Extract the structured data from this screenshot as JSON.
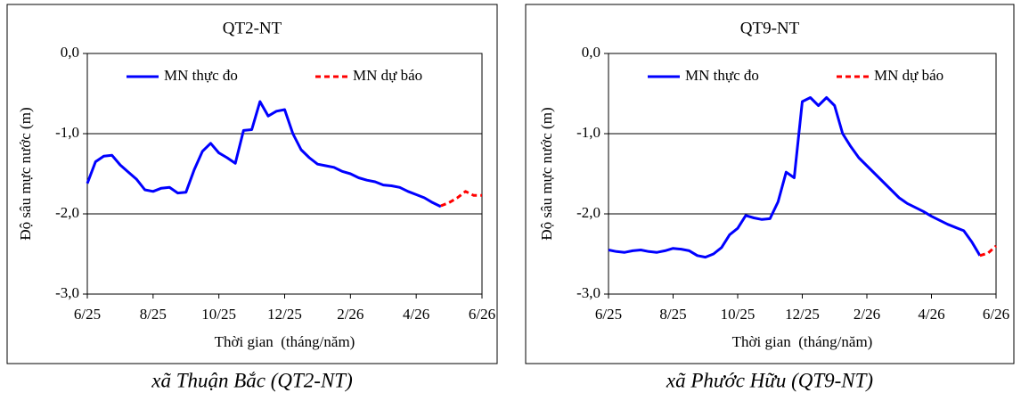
{
  "chart_data": [
    {
      "type": "line",
      "title": "QT2-NT",
      "caption": "xã Thuận Bắc (QT2-NT)",
      "x_label": "Thời gian  (tháng/năm)",
      "y_label": "Độ sâu mực nước (m)",
      "categories": [
        "6/25",
        null,
        null,
        null,
        null,
        null,
        null,
        null,
        "8/25",
        null,
        null,
        null,
        null,
        null,
        null,
        null,
        "10/25",
        null,
        null,
        null,
        null,
        null,
        null,
        null,
        "12/25",
        null,
        null,
        null,
        null,
        null,
        null,
        null,
        "2/26",
        null,
        null,
        null,
        null,
        null,
        null,
        null,
        "4/26",
        null,
        null,
        null,
        null,
        null,
        null,
        null,
        "6/26"
      ],
      "series": [
        {
          "name": "MN thực đo",
          "color": "#0000ff",
          "style": "solid",
          "values": [
            -1.62,
            -1.35,
            -1.28,
            -1.27,
            -1.39,
            -1.48,
            -1.57,
            -1.7,
            -1.72,
            -1.68,
            -1.67,
            -1.74,
            -1.73,
            -1.45,
            -1.22,
            -1.12,
            -1.24,
            -1.3,
            -1.37,
            -0.96,
            -0.95,
            -0.6,
            -0.78,
            -0.72,
            -0.7,
            -1.0,
            -1.2,
            -1.3,
            -1.38,
            -1.4,
            -1.42,
            -1.47,
            -1.5,
            -1.55,
            -1.58,
            -1.6,
            -1.64,
            -1.65,
            -1.67,
            -1.72,
            -1.76,
            -1.8,
            -1.86,
            -1.91,
            null,
            null,
            null,
            null,
            null
          ]
        },
        {
          "name": "MN dự báo",
          "color": "#ff0000",
          "style": "dashed",
          "values": [
            null,
            null,
            null,
            null,
            null,
            null,
            null,
            null,
            null,
            null,
            null,
            null,
            null,
            null,
            null,
            null,
            null,
            null,
            null,
            null,
            null,
            null,
            null,
            null,
            null,
            null,
            null,
            null,
            null,
            null,
            null,
            null,
            null,
            null,
            null,
            null,
            null,
            null,
            null,
            null,
            null,
            null,
            null,
            -1.9,
            -1.86,
            -1.8,
            -1.72,
            -1.77,
            -1.77
          ]
        }
      ],
      "ylim": [
        -3,
        0
      ],
      "yticks": [
        {
          "value": 0,
          "label": "0,0"
        },
        {
          "value": -1,
          "label": "-1,0"
        },
        {
          "value": -2,
          "label": "-2,0"
        },
        {
          "value": -3,
          "label": "-3,0"
        }
      ],
      "grid": true
    },
    {
      "type": "line",
      "title": "QT9-NT",
      "caption": "xã Phước Hữu (QT9-NT)",
      "x_label": "Thời gian  (tháng/năm)",
      "y_label": "Độ sâu mực nước (m)",
      "categories": [
        "6/25",
        null,
        null,
        null,
        null,
        null,
        null,
        null,
        "8/25",
        null,
        null,
        null,
        null,
        null,
        null,
        null,
        "10/25",
        null,
        null,
        null,
        null,
        null,
        null,
        null,
        "12/25",
        null,
        null,
        null,
        null,
        null,
        null,
        null,
        "2/26",
        null,
        null,
        null,
        null,
        null,
        null,
        null,
        "4/26",
        null,
        null,
        null,
        null,
        null,
        null,
        null,
        "6/26"
      ],
      "series": [
        {
          "name": "MN thực đo",
          "color": "#0000ff",
          "style": "solid",
          "values": [
            -2.45,
            -2.47,
            -2.48,
            -2.46,
            -2.45,
            -2.47,
            -2.48,
            -2.46,
            -2.43,
            -2.44,
            -2.46,
            -2.52,
            -2.54,
            -2.5,
            -2.42,
            -2.26,
            -2.18,
            -2.02,
            -2.05,
            -2.07,
            -2.06,
            -1.85,
            -1.48,
            -1.55,
            -0.6,
            -0.55,
            -0.65,
            -0.55,
            -0.65,
            -1.0,
            -1.16,
            -1.3,
            -1.4,
            -1.5,
            -1.6,
            -1.7,
            -1.8,
            -1.87,
            -1.92,
            -1.97,
            -2.03,
            -2.08,
            -2.13,
            -2.17,
            -2.21,
            -2.35,
            -2.52,
            null,
            null
          ]
        },
        {
          "name": "MN dự báo",
          "color": "#ff0000",
          "style": "dashed",
          "values": [
            null,
            null,
            null,
            null,
            null,
            null,
            null,
            null,
            null,
            null,
            null,
            null,
            null,
            null,
            null,
            null,
            null,
            null,
            null,
            null,
            null,
            null,
            null,
            null,
            null,
            null,
            null,
            null,
            null,
            null,
            null,
            null,
            null,
            null,
            null,
            null,
            null,
            null,
            null,
            null,
            null,
            null,
            null,
            null,
            null,
            null,
            -2.52,
            -2.49,
            -2.4
          ]
        }
      ],
      "ylim": [
        -3,
        0
      ],
      "yticks": [
        {
          "value": 0,
          "label": "0,0"
        },
        {
          "value": -1,
          "label": "-1,0"
        },
        {
          "value": -2,
          "label": "-2,0"
        },
        {
          "value": -3,
          "label": "-3,0"
        }
      ],
      "grid": true
    }
  ]
}
